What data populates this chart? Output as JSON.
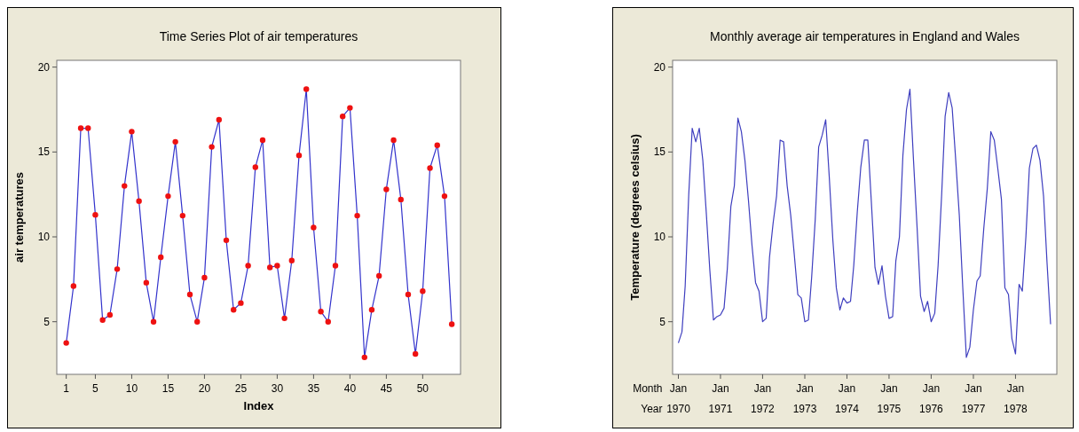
{
  "chart_data": [
    {
      "type": "line",
      "title": "Time Series Plot of air temperatures",
      "xlabel": "Index",
      "ylabel": "air temperatures",
      "x": [
        1,
        2,
        3,
        4,
        5,
        6,
        7,
        8,
        9,
        10,
        11,
        12,
        13,
        14,
        15,
        16,
        17,
        18,
        19,
        20,
        21,
        22,
        23,
        24,
        25,
        26,
        27,
        28,
        29,
        30,
        31,
        32,
        33,
        34,
        35,
        36,
        37,
        38,
        39,
        40,
        41,
        42,
        43,
        44,
        45,
        46,
        47,
        48,
        49,
        50,
        51,
        52,
        53,
        54
      ],
      "series": [
        {
          "color": "#3333cc",
          "values": [
            3.75,
            7.1,
            16.4,
            16.4,
            11.3,
            5.1,
            5.4,
            8.1,
            13.0,
            16.2,
            12.1,
            7.3,
            5.0,
            8.8,
            12.4,
            15.6,
            11.25,
            6.6,
            5.0,
            7.6,
            15.3,
            16.9,
            9.8,
            5.7,
            6.1,
            8.3,
            14.1,
            15.7,
            8.2,
            8.3,
            5.2,
            8.6,
            14.8,
            18.7,
            10.55,
            5.6,
            5.0,
            8.3,
            17.1,
            17.6,
            11.25,
            2.9,
            5.7,
            7.7,
            12.8,
            15.7,
            12.2,
            6.6,
            3.1,
            6.8,
            14.05,
            15.4,
            12.4,
            4.85
          ]
        },
        {
          "type": "scatter",
          "marker": "circle",
          "color": "#ee1111",
          "values": [
            3.75,
            7.1,
            16.4,
            16.4,
            11.3,
            5.1,
            5.4,
            8.1,
            13.0,
            16.2,
            12.1,
            7.3,
            5.0,
            8.8,
            12.4,
            15.6,
            11.25,
            6.6,
            5.0,
            7.6,
            15.3,
            16.9,
            9.8,
            5.7,
            6.1,
            8.3,
            14.1,
            15.7,
            8.2,
            8.3,
            5.2,
            8.6,
            14.8,
            18.7,
            10.55,
            5.6,
            5.0,
            8.3,
            17.1,
            17.6,
            11.25,
            2.9,
            5.7,
            7.7,
            12.8,
            15.7,
            12.2,
            6.6,
            3.1,
            6.8,
            14.05,
            15.4,
            12.4,
            4.85
          ]
        }
      ],
      "xlim": [
        -0.3,
        55.2
      ],
      "xticks": [
        1,
        5,
        10,
        15,
        20,
        25,
        30,
        35,
        40,
        45,
        50
      ],
      "ylim": [
        1.9,
        20.4
      ],
      "yticks": [
        5,
        10,
        15,
        20
      ],
      "line_style": "solid",
      "grid": false
    },
    {
      "type": "line",
      "title": "Monthly average air temperatures in England and Wales",
      "ylabel": "Temperature (degrees celsius)",
      "annotations": [
        "Month",
        "Year"
      ],
      "x": [
        "1970-01",
        "1970-02",
        "1970-03",
        "1970-04",
        "1970-05",
        "1970-06",
        "1970-07",
        "1970-08",
        "1970-09",
        "1970-10",
        "1970-11",
        "1970-12",
        "1971-01",
        "1971-02",
        "1971-03",
        "1971-04",
        "1971-05",
        "1971-06",
        "1971-07",
        "1971-08",
        "1971-09",
        "1971-10",
        "1971-11",
        "1971-12",
        "1972-01",
        "1972-02",
        "1972-03",
        "1972-04",
        "1972-05",
        "1972-06",
        "1972-07",
        "1972-08",
        "1972-09",
        "1972-10",
        "1972-11",
        "1972-12",
        "1973-01",
        "1973-02",
        "1973-03",
        "1973-04",
        "1973-05",
        "1973-06",
        "1973-07",
        "1973-08",
        "1973-09",
        "1973-10",
        "1973-11",
        "1973-12",
        "1974-01",
        "1974-02",
        "1974-03",
        "1974-04",
        "1974-05",
        "1974-06",
        "1974-07",
        "1974-08",
        "1974-09",
        "1974-10",
        "1974-11",
        "1974-12",
        "1975-01",
        "1975-02",
        "1975-03",
        "1975-04",
        "1975-05",
        "1975-06",
        "1975-07",
        "1975-08",
        "1975-09",
        "1975-10",
        "1975-11",
        "1975-12",
        "1976-01",
        "1976-02",
        "1976-03",
        "1976-04",
        "1976-05",
        "1976-06",
        "1976-07",
        "1976-08",
        "1976-09",
        "1976-10",
        "1976-11",
        "1976-12",
        "1977-01",
        "1977-02",
        "1977-03",
        "1977-04",
        "1977-05",
        "1977-06",
        "1977-07",
        "1977-08",
        "1977-09",
        "1977-10",
        "1977-11",
        "1977-12",
        "1978-01",
        "1978-02",
        "1978-03",
        "1978-04",
        "1978-05",
        "1978-06",
        "1978-07",
        "1978-08",
        "1978-09",
        "1978-10",
        "1978-11"
      ],
      "series": [
        {
          "color": "#3f3fbf",
          "values": [
            3.75,
            4.4,
            7.1,
            12.5,
            16.4,
            15.6,
            16.4,
            14.5,
            11.3,
            8.0,
            5.1,
            5.3,
            5.4,
            5.8,
            8.1,
            11.8,
            13.0,
            17.0,
            16.2,
            14.5,
            12.1,
            9.5,
            7.3,
            6.8,
            5.0,
            5.2,
            8.8,
            10.8,
            12.4,
            15.7,
            15.6,
            13.0,
            11.25,
            9.0,
            6.6,
            6.4,
            5.0,
            5.1,
            7.6,
            11.0,
            15.3,
            16.0,
            16.9,
            13.5,
            9.8,
            7.0,
            5.7,
            6.4,
            6.1,
            6.2,
            8.3,
            11.5,
            14.1,
            15.7,
            15.7,
            12.0,
            8.2,
            7.2,
            8.3,
            6.5,
            5.2,
            5.3,
            8.6,
            10.0,
            14.8,
            17.5,
            18.7,
            14.5,
            10.55,
            6.5,
            5.6,
            6.2,
            5.0,
            5.5,
            8.3,
            12.5,
            17.1,
            18.5,
            17.6,
            14.5,
            11.25,
            7.0,
            2.9,
            3.5,
            5.7,
            7.4,
            7.7,
            10.5,
            12.8,
            16.2,
            15.7,
            14.0,
            12.2,
            7.0,
            6.6,
            4.0,
            3.1,
            7.2,
            6.8,
            10.0,
            14.05,
            15.2,
            15.4,
            14.5,
            12.4,
            8.5,
            4.85
          ]
        }
      ],
      "xlim": [
        "1969-11-12",
        "1978-12-25"
      ],
      "xticks": [
        {
          "value": "1970-01",
          "label": "Jan\n1970"
        },
        {
          "value": "1971-01",
          "label": "Jan\n1971"
        },
        {
          "value": "1972-01",
          "label": "Jan\n1972"
        },
        {
          "value": "1973-01",
          "label": "Jan\n1973"
        },
        {
          "value": "1974-01",
          "label": "Jan\n1974"
        },
        {
          "value": "1975-01",
          "label": "Jan\n1975"
        },
        {
          "value": "1976-01",
          "label": "Jan\n1976"
        },
        {
          "value": "1977-01",
          "label": "Jan\n1977"
        },
        {
          "value": "1978-01",
          "label": "Jan\n1978"
        }
      ],
      "ylim": [
        1.9,
        20.4
      ],
      "yticks": [
        5,
        10,
        15,
        20
      ],
      "line_style": "solid",
      "grid": false
    }
  ]
}
